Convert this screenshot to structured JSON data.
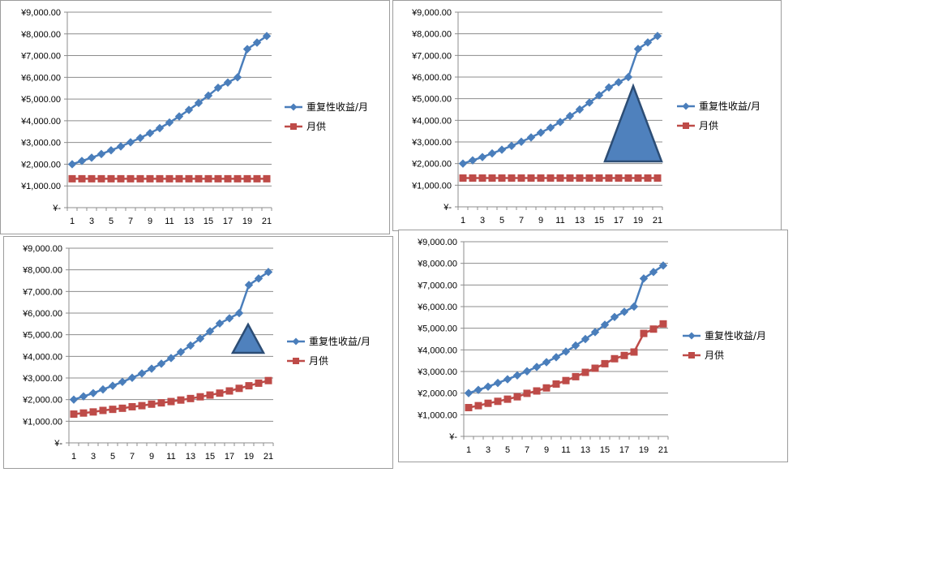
{
  "chart_data": [
    {
      "type": "line",
      "x": [
        1,
        2,
        3,
        4,
        5,
        6,
        7,
        8,
        9,
        10,
        11,
        12,
        13,
        14,
        15,
        16,
        17,
        18,
        19,
        20,
        21
      ],
      "xticks": [
        "1",
        "3",
        "5",
        "7",
        "9",
        "11",
        "13",
        "15",
        "17",
        "19",
        "21"
      ],
      "yticks": [
        "¥-",
        "¥1,000.00",
        "¥2,000.00",
        "¥3,000.00",
        "¥4,000.00",
        "¥5,000.00",
        "¥6,000.00",
        "¥7,000.00",
        "¥8,000.00",
        "¥9,000.00"
      ],
      "ylim": [
        0,
        9000
      ],
      "grid": true,
      "legend": "right",
      "series": [
        {
          "name": "重复性收益/月",
          "color": "#4a7ebb",
          "marker": "diamond",
          "values": [
            2000,
            2150,
            2300,
            2470,
            2640,
            2820,
            3010,
            3210,
            3430,
            3660,
            3920,
            4200,
            4500,
            4820,
            5160,
            5520,
            5760,
            6000,
            7300,
            7600,
            7900
          ]
        },
        {
          "name": "月供",
          "color": "#be4b48",
          "marker": "square",
          "values": [
            1330,
            1330,
            1330,
            1330,
            1330,
            1330,
            1330,
            1330,
            1330,
            1330,
            1330,
            1330,
            1330,
            1330,
            1330,
            1330,
            1330,
            1330,
            1330,
            1330,
            1330
          ]
        }
      ]
    },
    {
      "type": "line",
      "x": [
        1,
        2,
        3,
        4,
        5,
        6,
        7,
        8,
        9,
        10,
        11,
        12,
        13,
        14,
        15,
        16,
        17,
        18,
        19,
        20,
        21
      ],
      "xticks": [
        "1",
        "3",
        "5",
        "7",
        "9",
        "11",
        "13",
        "15",
        "17",
        "19",
        "21"
      ],
      "yticks": [
        "¥-",
        "¥1,000.00",
        "¥2,000.00",
        "¥3,000.00",
        "¥4,000.00",
        "¥5,000.00",
        "¥6,000.00",
        "¥7,000.00",
        "¥8,000.00",
        "¥9,000.00"
      ],
      "ylim": [
        0,
        9000
      ],
      "grid": true,
      "legend": "right",
      "annotation": "triangle",
      "series": [
        {
          "name": "重复性收益/月",
          "color": "#4a7ebb",
          "marker": "diamond",
          "values": [
            2000,
            2150,
            2300,
            2470,
            2640,
            2820,
            3010,
            3210,
            3430,
            3660,
            3920,
            4200,
            4500,
            4820,
            5160,
            5520,
            5760,
            6000,
            7300,
            7600,
            7900
          ]
        },
        {
          "name": "月供",
          "color": "#be4b48",
          "marker": "square",
          "values": [
            1330,
            1330,
            1330,
            1330,
            1330,
            1330,
            1330,
            1330,
            1330,
            1330,
            1330,
            1330,
            1330,
            1330,
            1330,
            1330,
            1330,
            1330,
            1330,
            1330,
            1330
          ]
        }
      ]
    },
    {
      "type": "line",
      "x": [
        1,
        2,
        3,
        4,
        5,
        6,
        7,
        8,
        9,
        10,
        11,
        12,
        13,
        14,
        15,
        16,
        17,
        18,
        19,
        20,
        21
      ],
      "xticks": [
        "1",
        "3",
        "5",
        "7",
        "9",
        "11",
        "13",
        "15",
        "17",
        "19",
        "21"
      ],
      "yticks": [
        "¥-",
        "¥1,000.00",
        "¥2,000.00",
        "¥3,000.00",
        "¥4,000.00",
        "¥5,000.00",
        "¥6,000.00",
        "¥7,000.00",
        "¥8,000.00",
        "¥9,000.00"
      ],
      "ylim": [
        0,
        9000
      ],
      "grid": true,
      "legend": "right",
      "annotation": "triangle",
      "series": [
        {
          "name": "重复性收益/月",
          "color": "#4a7ebb",
          "marker": "diamond",
          "values": [
            2000,
            2150,
            2300,
            2470,
            2640,
            2820,
            3010,
            3210,
            3430,
            3660,
            3920,
            4200,
            4500,
            4820,
            5160,
            5520,
            5760,
            6000,
            7300,
            7600,
            7900
          ]
        },
        {
          "name": "月供",
          "color": "#be4b48",
          "marker": "square",
          "values": [
            1330,
            1380,
            1430,
            1500,
            1550,
            1600,
            1670,
            1720,
            1790,
            1850,
            1910,
            1980,
            2050,
            2130,
            2210,
            2300,
            2400,
            2520,
            2640,
            2760,
            2880
          ]
        }
      ]
    },
    {
      "type": "line",
      "x": [
        1,
        2,
        3,
        4,
        5,
        6,
        7,
        8,
        9,
        10,
        11,
        12,
        13,
        14,
        15,
        16,
        17,
        18,
        19,
        20,
        21
      ],
      "xticks": [
        "1",
        "3",
        "5",
        "7",
        "9",
        "11",
        "13",
        "15",
        "17",
        "19",
        "21"
      ],
      "yticks": [
        "¥-",
        "¥1,000.00",
        "¥2,000.00",
        "¥3,000.00",
        "¥4,000.00",
        "¥5,000.00",
        "¥6,000.00",
        "¥7,000.00",
        "¥8,000.00",
        "¥9,000.00"
      ],
      "ylim": [
        0,
        9000
      ],
      "grid": true,
      "legend": "right",
      "series": [
        {
          "name": "重复性收益/月",
          "color": "#4a7ebb",
          "marker": "diamond",
          "values": [
            2000,
            2150,
            2300,
            2470,
            2640,
            2820,
            3010,
            3210,
            3430,
            3660,
            3920,
            4200,
            4500,
            4820,
            5160,
            5520,
            5760,
            6000,
            7300,
            7600,
            7900
          ]
        },
        {
          "name": "月供",
          "color": "#be4b48",
          "marker": "square",
          "values": [
            1330,
            1420,
            1530,
            1620,
            1720,
            1830,
            1990,
            2100,
            2240,
            2420,
            2580,
            2760,
            2960,
            3150,
            3360,
            3590,
            3740,
            3900,
            4760,
            4960,
            5200
          ]
        }
      ]
    }
  ]
}
